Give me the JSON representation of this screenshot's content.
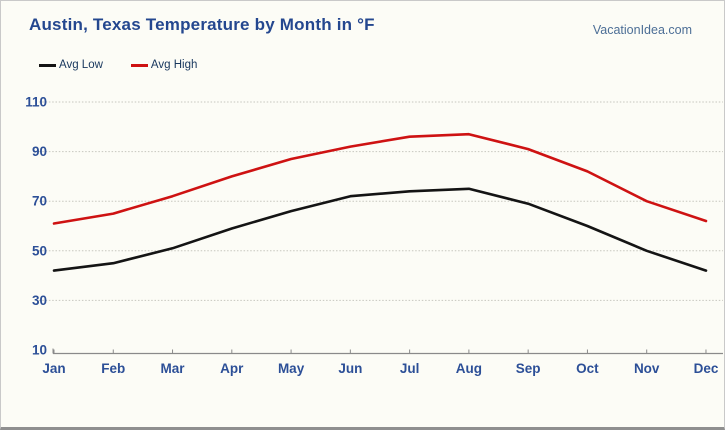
{
  "header": {
    "title": "Austin, Texas Temperature by Month in °F",
    "watermark": "VacationIdea.com"
  },
  "colors": {
    "avg_low": "#141414",
    "avg_high": "#ce1212",
    "title_text": "#24478f",
    "axis_label": "#2c4f97",
    "legend_text": "#17365d",
    "grid": "#c6c6be",
    "axis": "#8a8a8a",
    "background": "#fcfcf6"
  },
  "chart_data": {
    "type": "line",
    "title": "Austin, Texas Temperature by Month in °F",
    "categories": [
      "Jan",
      "Feb",
      "Mar",
      "Apr",
      "May",
      "Jun",
      "Jul",
      "Aug",
      "Sep",
      "Oct",
      "Nov",
      "Dec"
    ],
    "series": [
      {
        "name": "Avg Low",
        "color_key": "avg_low",
        "values": [
          42,
          45,
          51,
          59,
          66,
          72,
          74,
          75,
          69,
          60,
          50,
          42
        ]
      },
      {
        "name": "Avg High",
        "color_key": "avg_high",
        "values": [
          61,
          65,
          72,
          80,
          87,
          92,
          96,
          97,
          91,
          82,
          70,
          62
        ]
      }
    ],
    "y_ticks": [
      10,
      30,
      50,
      70,
      90,
      110
    ],
    "ylim": [
      10,
      118
    ],
    "xlabel": "",
    "ylabel": "",
    "grid": true,
    "legend_position": "top-left"
  }
}
